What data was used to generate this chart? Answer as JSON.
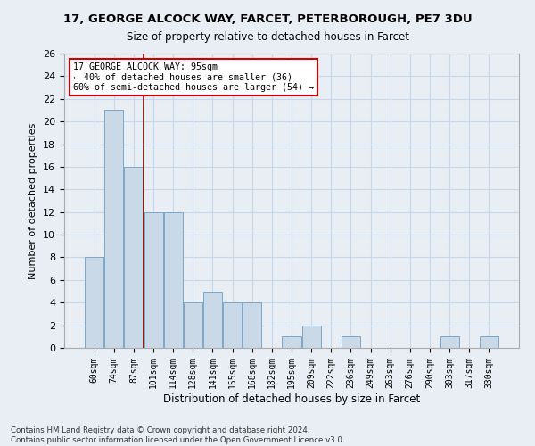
{
  "title": "17, GEORGE ALCOCK WAY, FARCET, PETERBOROUGH, PE7 3DU",
  "subtitle": "Size of property relative to detached houses in Farcet",
  "xlabel": "Distribution of detached houses by size in Farcet",
  "ylabel": "Number of detached properties",
  "categories": [
    "60sqm",
    "74sqm",
    "87sqm",
    "101sqm",
    "114sqm",
    "128sqm",
    "141sqm",
    "155sqm",
    "168sqm",
    "182sqm",
    "195sqm",
    "209sqm",
    "222sqm",
    "236sqm",
    "249sqm",
    "263sqm",
    "276sqm",
    "290sqm",
    "303sqm",
    "317sqm",
    "330sqm"
  ],
  "values": [
    8,
    21,
    16,
    12,
    12,
    4,
    5,
    4,
    4,
    0,
    1,
    2,
    0,
    1,
    0,
    0,
    0,
    0,
    1,
    0,
    1
  ],
  "bar_color": "#c9d9e8",
  "bar_edge_color": "#7ba7c9",
  "vline_x": 2.5,
  "vline_color": "#8b0000",
  "ylim": [
    0,
    26
  ],
  "yticks": [
    0,
    2,
    4,
    6,
    8,
    10,
    12,
    14,
    16,
    18,
    20,
    22,
    24,
    26
  ],
  "grid_color": "#c8d8e8",
  "annotation_text": "17 GEORGE ALCOCK WAY: 95sqm\n← 40% of detached houses are smaller (36)\n60% of semi-detached houses are larger (54) →",
  "annotation_box_color": "#ffffff",
  "annotation_box_edge_color": "#cc0000",
  "footer_line1": "Contains HM Land Registry data © Crown copyright and database right 2024.",
  "footer_line2": "Contains public sector information licensed under the Open Government Licence v3.0.",
  "bg_color": "#e8eef4",
  "fig_bg_color": "#e8eef4"
}
